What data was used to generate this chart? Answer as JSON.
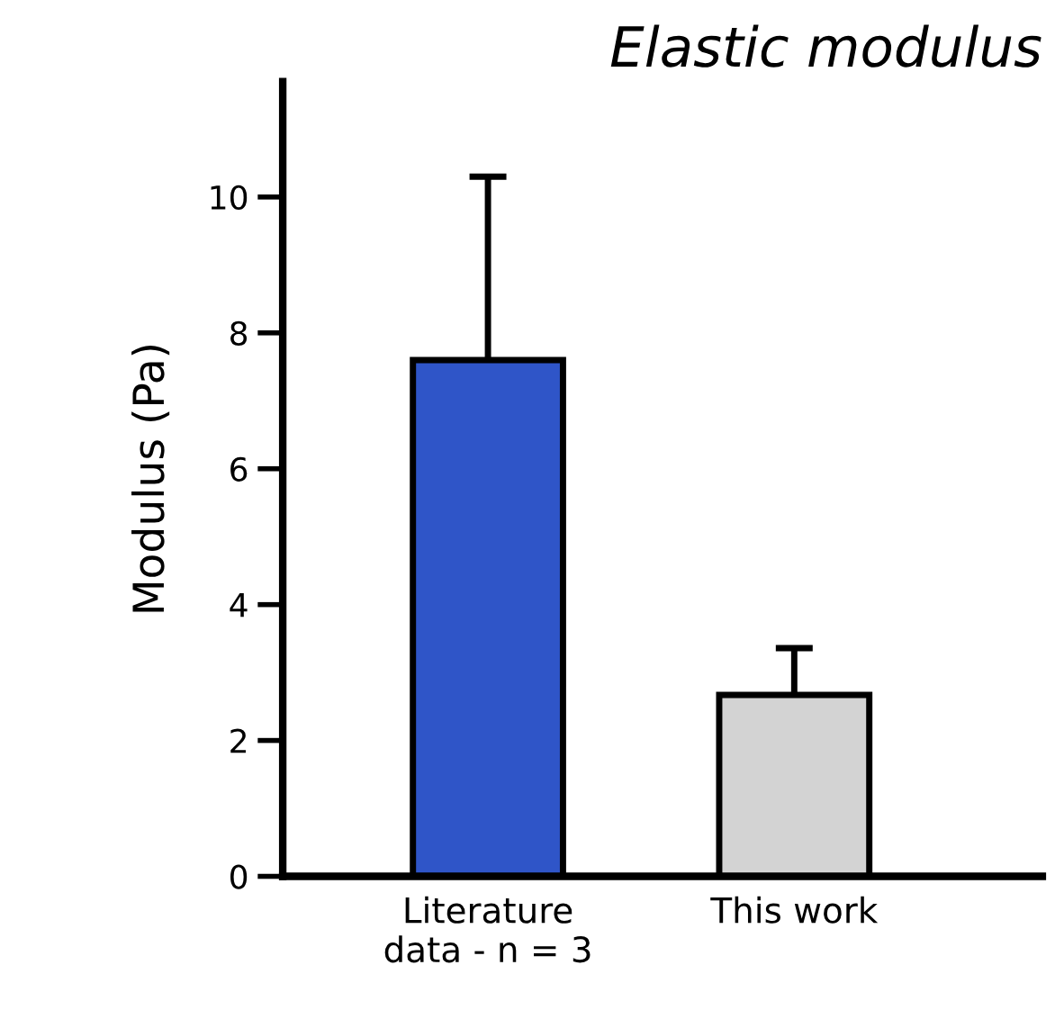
{
  "chart_data": {
    "type": "bar",
    "title": "Elastic modulus",
    "ylabel": "Modulus (Pa)",
    "categories": [
      "Literature\ndata - n = 3",
      "This work"
    ],
    "values": [
      7.6,
      2.67
    ],
    "colors": [
      "#2f55c8",
      "#d3d3d3"
    ],
    "errors": [
      [
        7.6,
        10.3
      ],
      [
        2.67,
        3.36
      ]
    ],
    "ylim": [
      0,
      11.7
    ],
    "yticks": [
      0,
      2,
      4,
      6,
      8,
      10
    ],
    "grid": false,
    "legend": false
  }
}
